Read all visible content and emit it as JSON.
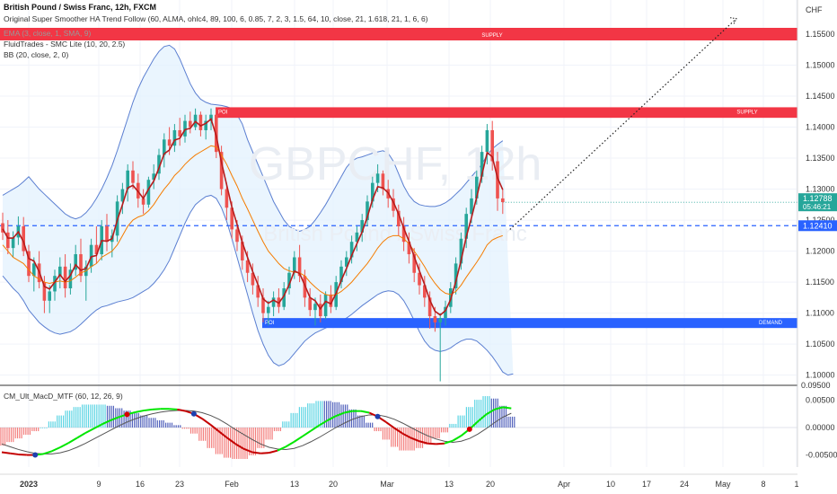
{
  "header": {
    "symbol_title": "British Pound / Swiss Franc, 12h, FXCM",
    "indicator_1": "Original Super Smoother HA Trend Follow (60, ALMA, ohlc4, 89, 100, 6, 0.85, 7, 2, 3, 1.5, 64, 10, close, 21, 1.618, 21, 1, 6, 6)",
    "indicator_2": "EMA (3, close, 1, SMA, 9)",
    "indicator_3": "FluidTrades - SMC Lite  (10, 20, 2.5)",
    "indicator_4": "BB (20, close, 2, 0)"
  },
  "watermark": {
    "symbol": "GBPCHF, 12h",
    "name": "British Pound / Swiss Franc"
  },
  "price_axis": {
    "currency": "CHF",
    "ticks": [
      "1.15500",
      "1.15000",
      "1.14500",
      "1.14000",
      "1.13500",
      "1.13000",
      "1.12500",
      "1.12000",
      "1.11500",
      "1.11000",
      "1.10500",
      "1.10000"
    ],
    "current_price": "1.12788",
    "countdown": "05:46:21",
    "level_price": "1.12410"
  },
  "zones": {
    "supply_top_label": "SUPPLY",
    "supply_mid_label": "SUPPLY",
    "poi_top_label": "POI",
    "demand_label": "DEMAND",
    "poi_bottom_label": "POI"
  },
  "macd": {
    "title": "CM_Ult_MacD_MTF (60, 12, 26, 9)",
    "ticks": [
      "0.00500",
      "0.00000",
      "-0.00500"
    ],
    "top_label": "0.09500"
  },
  "time_axis": {
    "ticks": [
      "2023",
      "9",
      "16",
      "23",
      "Feb",
      "13",
      "20",
      "Mar",
      "13",
      "20",
      "Apr",
      "10",
      "17",
      "24",
      "May",
      "8",
      "1"
    ]
  },
  "colors": {
    "up": "#26a69a",
    "down": "#ef5350",
    "supply": "#f23645",
    "demand": "#2962ff",
    "bb_fill": "#e3f2fd",
    "bb_line": "#5b7fd1",
    "ema": "#b71c1c",
    "trend": "#f57c00",
    "macd_line": "#00e600",
    "macd_down": "#c40000",
    "signal": "#555555",
    "hist_pos": "#4dd0e1",
    "hist_pos_fade": "#3f51b5",
    "hist_neg": "#ef5350"
  },
  "chart_data": {
    "type": "candlestick",
    "symbol": "GBPCHF",
    "timeframe": "12h",
    "ylim": [
      1.0985,
      1.1605
    ],
    "price_candles": {
      "columns": [
        "open",
        "high",
        "low",
        "close"
      ],
      "values": [
        [
          1.1245,
          1.1262,
          1.1218,
          1.123
        ],
        [
          1.123,
          1.125,
          1.1195,
          1.1205
        ],
        [
          1.1205,
          1.1232,
          1.119,
          1.1222
        ],
        [
          1.1222,
          1.1256,
          1.121,
          1.124
        ],
        [
          1.124,
          1.1255,
          1.1192,
          1.12
        ],
        [
          1.12,
          1.121,
          1.115,
          1.116
        ],
        [
          1.116,
          1.119,
          1.1135,
          1.118
        ],
        [
          1.118,
          1.12,
          1.114,
          1.115
        ],
        [
          1.115,
          1.116,
          1.11,
          1.112
        ],
        [
          1.112,
          1.1145,
          1.11,
          1.1135
        ],
        [
          1.1135,
          1.117,
          1.112,
          1.116
        ],
        [
          1.116,
          1.119,
          1.114,
          1.1175
        ],
        [
          1.1175,
          1.1195,
          1.1125,
          1.114
        ],
        [
          1.114,
          1.118,
          1.113,
          1.117
        ],
        [
          1.117,
          1.121,
          1.116,
          1.1195
        ],
        [
          1.1195,
          1.122,
          1.115,
          1.116
        ],
        [
          1.116,
          1.1185,
          1.112,
          1.1175
        ],
        [
          1.1175,
          1.122,
          1.1165,
          1.121
        ],
        [
          1.121,
          1.124,
          1.118,
          1.1195
        ],
        [
          1.1195,
          1.125,
          1.1185,
          1.124
        ],
        [
          1.124,
          1.126,
          1.12,
          1.1215
        ],
        [
          1.1215,
          1.1235,
          1.119,
          1.1225
        ],
        [
          1.1225,
          1.129,
          1.1215,
          1.128
        ],
        [
          1.128,
          1.131,
          1.126,
          1.13
        ],
        [
          1.13,
          1.134,
          1.128,
          1.133
        ],
        [
          1.133,
          1.1345,
          1.13,
          1.131
        ],
        [
          1.131,
          1.1325,
          1.127,
          1.1285
        ],
        [
          1.1285,
          1.13,
          1.126,
          1.1275
        ],
        [
          1.1275,
          1.132,
          1.127,
          1.1315
        ],
        [
          1.1315,
          1.134,
          1.13,
          1.1325
        ],
        [
          1.1325,
          1.1365,
          1.1315,
          1.1355
        ],
        [
          1.1355,
          1.139,
          1.1335,
          1.138
        ],
        [
          1.138,
          1.14,
          1.1355,
          1.137
        ],
        [
          1.137,
          1.1405,
          1.136,
          1.1395
        ],
        [
          1.1395,
          1.1415,
          1.137,
          1.1385
        ],
        [
          1.1385,
          1.142,
          1.1375,
          1.141
        ],
        [
          1.141,
          1.1425,
          1.139,
          1.14
        ],
        [
          1.14,
          1.143,
          1.1395,
          1.142
        ],
        [
          1.142,
          1.1425,
          1.1385,
          1.1395
        ],
        [
          1.1395,
          1.142,
          1.138,
          1.141
        ],
        [
          1.141,
          1.143,
          1.1395,
          1.142
        ],
        [
          1.142,
          1.1432,
          1.135,
          1.136
        ],
        [
          1.136,
          1.137,
          1.129,
          1.13
        ],
        [
          1.13,
          1.131,
          1.125,
          1.127
        ],
        [
          1.127,
          1.128,
          1.122,
          1.1235
        ],
        [
          1.1235,
          1.125,
          1.12,
          1.1215
        ],
        [
          1.1215,
          1.1225,
          1.117,
          1.1185
        ],
        [
          1.1185,
          1.12,
          1.115,
          1.1165
        ],
        [
          1.1165,
          1.118,
          1.113,
          1.1145
        ],
        [
          1.1145,
          1.116,
          1.111,
          1.1125
        ],
        [
          1.1125,
          1.114,
          1.1085,
          1.11
        ],
        [
          1.11,
          1.112,
          1.108,
          1.111
        ],
        [
          1.111,
          1.1135,
          1.1095,
          1.1125
        ],
        [
          1.1125,
          1.114,
          1.11,
          1.111
        ],
        [
          1.111,
          1.115,
          1.1105,
          1.114
        ],
        [
          1.114,
          1.1175,
          1.113,
          1.1165
        ],
        [
          1.1165,
          1.12,
          1.1155,
          1.119
        ],
        [
          1.119,
          1.121,
          1.115,
          1.116
        ],
        [
          1.116,
          1.117,
          1.111,
          1.1125
        ],
        [
          1.1125,
          1.114,
          1.1095,
          1.1105
        ],
        [
          1.1105,
          1.1125,
          1.108,
          1.1115
        ],
        [
          1.1115,
          1.113,
          1.1085,
          1.1095
        ],
        [
          1.1095,
          1.1135,
          1.109,
          1.113
        ],
        [
          1.113,
          1.1145,
          1.11,
          1.111
        ],
        [
          1.111,
          1.116,
          1.1105,
          1.115
        ],
        [
          1.115,
          1.1185,
          1.114,
          1.1175
        ],
        [
          1.1175,
          1.12,
          1.116,
          1.119
        ],
        [
          1.119,
          1.1225,
          1.118,
          1.1215
        ],
        [
          1.1215,
          1.124,
          1.12,
          1.123
        ],
        [
          1.123,
          1.126,
          1.1215,
          1.125
        ],
        [
          1.125,
          1.129,
          1.124,
          1.128
        ],
        [
          1.128,
          1.132,
          1.127,
          1.131
        ],
        [
          1.131,
          1.134,
          1.1295,
          1.1325
        ],
        [
          1.1325,
          1.133,
          1.129,
          1.13
        ],
        [
          1.13,
          1.1315,
          1.127,
          1.1285
        ],
        [
          1.1285,
          1.13,
          1.1255,
          1.1265
        ],
        [
          1.1265,
          1.1275,
          1.1225,
          1.124
        ],
        [
          1.124,
          1.1255,
          1.12,
          1.1215
        ],
        [
          1.1215,
          1.123,
          1.118,
          1.1195
        ],
        [
          1.1195,
          1.1205,
          1.115,
          1.1165
        ],
        [
          1.1165,
          1.118,
          1.113,
          1.1145
        ],
        [
          1.1145,
          1.116,
          1.111,
          1.1125
        ],
        [
          1.1125,
          1.1135,
          1.1075,
          1.1095
        ],
        [
          1.1095,
          1.111,
          1.107,
          1.1085
        ],
        [
          1.1085,
          1.11,
          1.099,
          1.1092
        ],
        [
          1.1092,
          1.112,
          1.108,
          1.111
        ],
        [
          1.111,
          1.115,
          1.11,
          1.114
        ],
        [
          1.114,
          1.119,
          1.113,
          1.118
        ],
        [
          1.118,
          1.123,
          1.117,
          1.122
        ],
        [
          1.122,
          1.127,
          1.1205,
          1.126
        ],
        [
          1.126,
          1.13,
          1.1245,
          1.1285
        ],
        [
          1.1285,
          1.133,
          1.1275,
          1.132
        ],
        [
          1.132,
          1.137,
          1.131,
          1.136
        ],
        [
          1.136,
          1.1405,
          1.134,
          1.1395
        ],
        [
          1.1395,
          1.141,
          1.133,
          1.1345
        ],
        [
          1.1345,
          1.136,
          1.1265,
          1.1285
        ],
        [
          1.1285,
          1.13,
          1.126,
          1.1279
        ]
      ]
    },
    "ema_3": [
      1.1236,
      1.1221,
      1.1221,
      1.1231,
      1.1215,
      1.1188,
      1.1184,
      1.1167,
      1.1143,
      1.1139,
      1.115,
      1.1162,
      1.1151,
      1.1161,
      1.1178,
      1.1169,
      1.1172,
      1.1191,
      1.1193,
      1.1217,
      1.1216,
      1.122,
      1.125,
      1.1275,
      1.1302,
      1.1306,
      1.1296,
      1.1285,
      1.13,
      1.1313,
      1.1334,
      1.1357,
      1.1363,
      1.1379,
      1.1382,
      1.1396,
      1.1398,
      1.1409,
      1.1402,
      1.1406,
      1.1413,
      1.1386,
      1.1343,
      1.1307,
      1.1271,
      1.1243,
      1.1214,
      1.119,
      1.1167,
      1.1146,
      1.1123,
      1.1116,
      1.1121,
      1.1116,
      1.1128,
      1.1146,
      1.1168,
      1.1164,
      1.1145,
      1.1125,
      1.112,
      1.1107,
      1.1119,
      1.1115,
      1.1132,
      1.1153,
      1.1172,
      1.1193,
      1.1212,
      1.1231,
      1.1255,
      1.1283,
      1.1304,
      1.1302,
      1.1294,
      1.1279,
      1.126,
      1.1237,
      1.1216,
      1.1191,
      1.1168,
      1.1146,
      1.1121,
      1.1103,
      1.1097,
      1.1104,
      1.1122,
      1.1151,
      1.1185,
      1.1223,
      1.1254,
      1.1287,
      1.1323,
      1.1359,
      1.1352,
      1.1318,
      1.1299
    ],
    "trend_line": [
      1.121,
      1.12,
      1.119,
      1.1185,
      1.118,
      1.117,
      1.116,
      1.1155,
      1.115,
      1.1148,
      1.115,
      1.1152,
      1.115,
      1.1152,
      1.1158,
      1.1165,
      1.1168,
      1.1175,
      1.118,
      1.119,
      1.1195,
      1.12,
      1.121,
      1.1225,
      1.124,
      1.125,
      1.1255,
      1.1258,
      1.1265,
      1.1275,
      1.1288,
      1.13,
      1.131,
      1.1322,
      1.133,
      1.134,
      1.1348,
      1.1355,
      1.136,
      1.1365,
      1.137,
      1.1368,
      1.1355,
      1.134,
      1.1322,
      1.1305,
      1.1285,
      1.1268,
      1.125,
      1.1232,
      1.1215,
      1.12,
      1.119,
      1.118,
      1.1172,
      1.1168,
      1.1166,
      1.1165,
      1.116,
      1.115,
      1.1142,
      1.1135,
      1.113,
      1.1128,
      1.113,
      1.1135,
      1.1142,
      1.115,
      1.116,
      1.117,
      1.118,
      1.1192,
      1.1205,
      1.1215,
      1.1222,
      1.1225,
      1.1225,
      1.122,
      1.1212,
      1.12,
      1.1188,
      1.1175,
      1.116,
      1.1148,
      1.1138,
      1.1132,
      1.113,
      1.1135,
      1.1145,
      1.1158,
      1.117,
      1.1182,
      1.1195,
      1.121,
      1.1218,
      1.1222,
      1.1225
    ],
    "bb_upper": [
      1.129,
      1.1295,
      1.13,
      1.1305,
      1.1312,
      1.132,
      1.131,
      1.13,
      1.1292,
      1.1284,
      1.1276,
      1.1268,
      1.126,
      1.1255,
      1.1252,
      1.1255,
      1.1262,
      1.1272,
      1.1285,
      1.13,
      1.1318,
      1.1338,
      1.1362,
      1.1388,
      1.1414,
      1.144,
      1.1462,
      1.148,
      1.1495,
      1.151,
      1.1522,
      1.153,
      1.1532,
      1.1526,
      1.151,
      1.149,
      1.147,
      1.1455,
      1.1445,
      1.144,
      1.1437,
      1.1436,
      1.1435,
      1.1433,
      1.143,
      1.142,
      1.1405,
      1.138,
      1.136,
      1.134,
      1.132,
      1.13,
      1.128,
      1.1265,
      1.125,
      1.124,
      1.1235,
      1.1232,
      1.1235,
      1.124,
      1.125,
      1.1262,
      1.1275,
      1.129,
      1.1305,
      1.132,
      1.1335,
      1.1345,
      1.135,
      1.1352,
      1.1355,
      1.1358,
      1.136,
      1.1362,
      1.1358,
      1.1345,
      1.1325,
      1.1305,
      1.129,
      1.128,
      1.1275,
      1.1273,
      1.1272,
      1.1272,
      1.1274,
      1.1278,
      1.1284,
      1.1292,
      1.13,
      1.131,
      1.132,
      1.133,
      1.134,
      1.1355,
      1.1365,
      1.1372,
      1.1378
    ],
    "bb_lower": [
      1.116,
      1.115,
      1.114,
      1.1132,
      1.112,
      1.1105,
      1.1095,
      1.1085,
      1.1078,
      1.1072,
      1.1068,
      1.1066,
      1.1068,
      1.107,
      1.1075,
      1.1082,
      1.109,
      1.1098,
      1.1105,
      1.111,
      1.1112,
      1.1115,
      1.1118,
      1.112,
      1.1122,
      1.1125,
      1.113,
      1.1135,
      1.114,
      1.1148,
      1.1158,
      1.117,
      1.1185,
      1.1205,
      1.1225,
      1.1245,
      1.1262,
      1.1275,
      1.1282,
      1.1288,
      1.129,
      1.1285,
      1.127,
      1.1248,
      1.122,
      1.119,
      1.116,
      1.113,
      1.11,
      1.1072,
      1.105,
      1.1032,
      1.102,
      1.1015,
      1.1018,
      1.1025,
      1.1035,
      1.1045,
      1.1055,
      1.1062,
      1.1068,
      1.1072,
      1.1076,
      1.108,
      1.1084,
      1.1088,
      1.1092,
      1.1098,
      1.1105,
      1.1112,
      1.1118,
      1.1124,
      1.113,
      1.1134,
      1.1136,
      1.1135,
      1.113,
      1.112,
      1.1105,
      1.1088,
      1.107,
      1.1055,
      1.1045,
      1.104,
      1.1038,
      1.104,
      1.1044,
      1.105,
      1.1055,
      1.1058,
      1.1058,
      1.1055,
      1.1048,
      1.104,
      1.103,
      1.1018,
      1.1005,
      1.1,
      1.1002
    ],
    "macd": {
      "ylim": [
        -0.0072,
        0.0072
      ],
      "macd_line": [
        -0.0045,
        -0.0047,
        -0.0049,
        -0.005,
        -0.005,
        -0.0048,
        -0.0043,
        -0.0036,
        -0.0028,
        -0.0019,
        -0.001,
        -0.0002,
        0.0006,
        0.0013,
        0.0019,
        0.0024,
        0.0028,
        0.0031,
        0.0033,
        0.0034,
        0.0034,
        0.0033,
        0.003,
        0.0025,
        0.0016,
        0.0005,
        -0.0007,
        -0.0019,
        -0.003,
        -0.0039,
        -0.0045,
        -0.0047,
        -0.0046,
        -0.0042,
        -0.0035,
        -0.0026,
        -0.0016,
        -0.0006,
        0.0004,
        0.0013,
        0.0021,
        0.0027,
        0.003,
        0.003,
        0.0027,
        0.002,
        0.001,
        -0.0001,
        -0.0011,
        -0.0019,
        -0.0025,
        -0.0029,
        -0.003,
        -0.0029,
        -0.0024,
        -0.0015,
        -0.0003,
        0.0011,
        0.0024,
        0.0033,
        0.0037,
        0.0035
      ],
      "signal_line": [
        -0.003,
        -0.0035,
        -0.004,
        -0.0044,
        -0.0047,
        -0.0048,
        -0.0048,
        -0.0046,
        -0.0042,
        -0.0036,
        -0.0029,
        -0.0021,
        -0.0013,
        -0.0005,
        0.0003,
        0.001,
        0.0016,
        0.0021,
        0.0025,
        0.0028,
        0.003,
        0.0031,
        0.0031,
        0.003,
        0.0027,
        0.0022,
        0.0015,
        0.0006,
        -0.0004,
        -0.0013,
        -0.0022,
        -0.003,
        -0.0036,
        -0.0039,
        -0.004,
        -0.0038,
        -0.0033,
        -0.0026,
        -0.0018,
        -0.0009,
        0.0,
        0.0008,
        0.0015,
        0.002,
        0.0023,
        0.0023,
        0.002,
        0.0015,
        0.0008,
        0.0,
        -0.0008,
        -0.0015,
        -0.0021,
        -0.0025,
        -0.0027,
        -0.0025,
        -0.002,
        -0.0012,
        -0.0002,
        0.0009,
        0.0019,
        0.0026
      ],
      "cross_markers": [
        4,
        15,
        23,
        45,
        56
      ]
    }
  }
}
